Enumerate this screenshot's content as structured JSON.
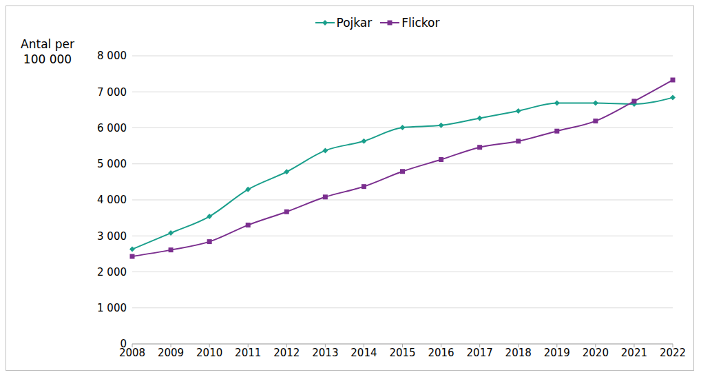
{
  "chart_data": {
    "type": "line",
    "y_label": "Antal per 100 000",
    "categories": [
      "2008",
      "2009",
      "2010",
      "2011",
      "2012",
      "2013",
      "2014",
      "2015",
      "2016",
      "2017",
      "2018",
      "2019",
      "2020",
      "2021",
      "2022"
    ],
    "series": [
      {
        "name": "Pojkar",
        "color": "#1a9f8c",
        "marker": "diamond",
        "values": [
          2630,
          3080,
          3540,
          4290,
          4780,
          5370,
          5630,
          6010,
          6070,
          6270,
          6470,
          6690,
          6690,
          6660,
          6840
        ]
      },
      {
        "name": "Flickor",
        "color": "#7b2f8f",
        "marker": "square",
        "values": [
          2430,
          2610,
          2840,
          3300,
          3670,
          4080,
          4370,
          4790,
          5120,
          5460,
          5630,
          5910,
          6190,
          6740,
          7330
        ]
      }
    ],
    "ylim": [
      0,
      8000
    ],
    "yticks": [
      0,
      {
        "value": 1000,
        "label": "1 000"
      },
      {
        "value": 2000,
        "label": "2 000"
      },
      {
        "value": 3000,
        "label": "3 000"
      },
      {
        "value": 4000,
        "label": "4 000"
      },
      {
        "value": 5000,
        "label": "5 000"
      },
      {
        "value": 6000,
        "label": "6 000"
      },
      {
        "value": 7000,
        "label": "7 000"
      },
      {
        "value": 8000,
        "label": "8 000"
      }
    ],
    "grid": true,
    "legend": "top"
  }
}
